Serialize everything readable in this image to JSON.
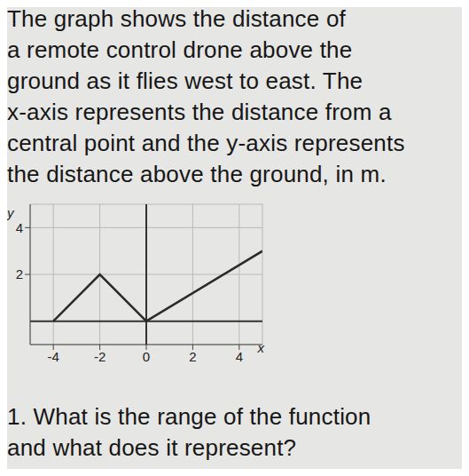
{
  "text": [
    "The graph shows the distance of",
    "a remote control drone above the",
    "ground as it flies west to east. The",
    "x-axis represents the distance from a",
    "central point and the y-axis represents",
    "the distance above the ground, in m."
  ],
  "chart_data": {
    "type": "line",
    "x_label": "x",
    "y_label": "y",
    "x": [
      -4,
      -2,
      0,
      5
    ],
    "values": [
      0,
      2,
      0,
      3
    ],
    "color": "#2b2b2b",
    "xlim": [
      -5,
      5
    ],
    "ylim": [
      -1,
      5
    ],
    "xticks": [
      -4,
      -2,
      0,
      2,
      4
    ],
    "yticks": [
      2,
      4
    ],
    "grid": true
  },
  "question": [
    "1. What is the range of the function",
    "and what does it represent?"
  ]
}
